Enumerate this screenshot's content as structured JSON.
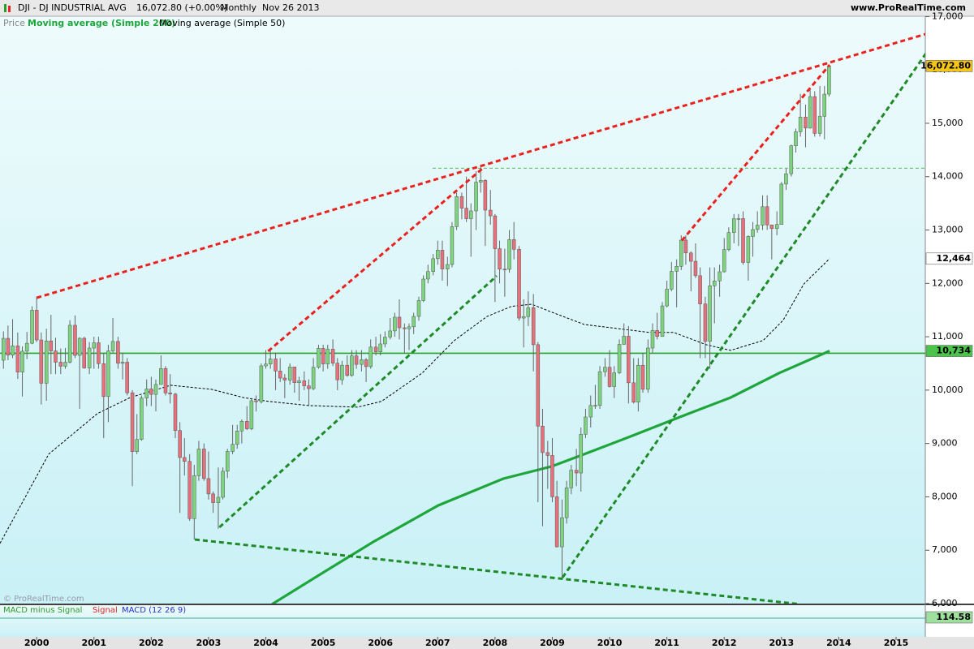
{
  "header": {
    "symbol": "DJI - DJ INDUSTRIAL AVG",
    "quote": "16,072.80 (+0.00%)",
    "period": "Monthly",
    "date": "Nov 26 2013",
    "site": "www.ProRealTime.com",
    "watermark": "© ProRealTime.com"
  },
  "chart_data": {
    "type": "candlestick",
    "legend": [
      "Price"
    ],
    "up_color": "#7ed47e",
    "down_color": "#e8707a",
    "xlim": [
      1999.36,
      2015.51
    ],
    "xticks": [
      2000,
      2001,
      2002,
      2003,
      2004,
      2005,
      2006,
      2007,
      2008,
      2009,
      2010,
      2011,
      2012,
      2013,
      2014,
      2015
    ],
    "ylim": [
      6000,
      17310
    ],
    "yticks": [
      {
        "value": 6000,
        "label": "6,000"
      },
      {
        "value": 7000,
        "label": "7,000"
      },
      {
        "value": 8000,
        "label": "8,000"
      },
      {
        "value": 9000,
        "label": "9,000"
      },
      {
        "value": 10000,
        "label": "10,000"
      },
      {
        "value": 11000,
        "label": "11,000"
      },
      {
        "value": 12000,
        "label": "12,000"
      },
      {
        "value": 13000,
        "label": "13,000"
      },
      {
        "value": 14000,
        "label": "14,000"
      },
      {
        "value": 15000,
        "label": "15,000"
      },
      {
        "value": 16000,
        "label": "16,000"
      },
      {
        "value": 17000,
        "label": "17,000"
      }
    ],
    "x": [
      1999.42,
      1999.5,
      1999.58,
      1999.67,
      1999.75,
      1999.83,
      1999.92,
      2000,
      2000.08,
      2000.17,
      2000.25,
      2000.33,
      2000.42,
      2000.5,
      2000.58,
      2000.67,
      2000.75,
      2000.83,
      2000.92,
      2001,
      2001.08,
      2001.17,
      2001.25,
      2001.33,
      2001.42,
      2001.5,
      2001.58,
      2001.67,
      2001.75,
      2001.83,
      2001.92,
      2002,
      2002.08,
      2002.17,
      2002.25,
      2002.33,
      2002.42,
      2002.5,
      2002.58,
      2002.67,
      2002.75,
      2002.83,
      2002.92,
      2003,
      2003.08,
      2003.17,
      2003.25,
      2003.33,
      2003.42,
      2003.5,
      2003.58,
      2003.67,
      2003.75,
      2003.83,
      2003.92,
      2004,
      2004.08,
      2004.17,
      2004.25,
      2004.33,
      2004.42,
      2004.5,
      2004.58,
      2004.67,
      2004.75,
      2004.83,
      2004.92,
      2005,
      2005.08,
      2005.17,
      2005.25,
      2005.33,
      2005.42,
      2005.5,
      2005.58,
      2005.67,
      2005.75,
      2005.83,
      2005.92,
      2006,
      2006.08,
      2006.17,
      2006.25,
      2006.33,
      2006.42,
      2006.5,
      2006.58,
      2006.67,
      2006.75,
      2006.83,
      2006.92,
      2007,
      2007.08,
      2007.17,
      2007.25,
      2007.33,
      2007.42,
      2007.5,
      2007.58,
      2007.67,
      2007.75,
      2007.83,
      2007.92,
      2008,
      2008.08,
      2008.17,
      2008.25,
      2008.33,
      2008.42,
      2008.5,
      2008.58,
      2008.67,
      2008.75,
      2008.83,
      2008.92,
      2009,
      2009.08,
      2009.17,
      2009.25,
      2009.33,
      2009.42,
      2009.5,
      2009.58,
      2009.67,
      2009.75,
      2009.83,
      2009.92,
      2010,
      2010.08,
      2010.17,
      2010.25,
      2010.33,
      2010.42,
      2010.5,
      2010.58,
      2010.67,
      2010.75,
      2010.83,
      2010.92,
      2011,
      2011.08,
      2011.17,
      2011.25,
      2011.33,
      2011.42,
      2011.5,
      2011.58,
      2011.67,
      2011.75,
      2011.83,
      2011.92,
      2012,
      2012.08,
      2012.17,
      2012.25,
      2012.33,
      2012.42,
      2012.5,
      2012.58,
      2012.67,
      2012.75,
      2012.83,
      2012.92,
      2013,
      2013.08,
      2013.17,
      2013.25,
      2013.33,
      2013.42,
      2013.5,
      2013.58,
      2013.67,
      2013.75,
      2013.83
    ],
    "open": [
      10560,
      10970,
      10655,
      10829,
      10337,
      10729,
      10878,
      11497,
      10940,
      10128,
      10922,
      10734,
      10522,
      10448,
      10522,
      11215,
      10651,
      10971,
      10415,
      10788,
      10887,
      10495,
      9879,
      10735,
      10912,
      10502,
      10523,
      9950,
      8848,
      9075,
      9852,
      10022,
      9920,
      10106,
      10404,
      9946,
      9925,
      9243,
      8737,
      8664,
      7592,
      8397,
      8896,
      8342,
      8054,
      7891,
      7992,
      8480,
      8850,
      8985,
      9234,
      9416,
      9275,
      9801,
      9782,
      10454,
      10488,
      10584,
      10358,
      10226,
      10188,
      10435,
      10140,
      10174,
      10080,
      10027,
      10428,
      10783,
      10490,
      10766,
      10504,
      10193,
      10467,
      10275,
      10641,
      10482,
      10569,
      10440,
      10806,
      10718,
      10865,
      10993,
      11109,
      11367,
      11168,
      11150,
      11186,
      11381,
      11679,
      12081,
      12221,
      12463,
      12622,
      12269,
      12354,
      13063,
      13628,
      13409,
      13212,
      13358,
      13896,
      13930,
      13372,
      13265,
      12650,
      12266,
      12263,
      12820,
      12638,
      11350,
      11378,
      11544,
      10851,
      9325,
      8829,
      8776,
      8001,
      7063,
      7609,
      8168,
      8500,
      8447,
      9172,
      9496,
      9712,
      9713,
      10345,
      10428,
      10067,
      10325,
      10857,
      11009,
      10137,
      9774,
      10466,
      10015,
      10788,
      11118,
      11006,
      11578,
      11892,
      12226,
      12320,
      12811,
      12570,
      12414,
      12143,
      11614,
      10913,
      11955,
      12046,
      12218,
      12633,
      12952,
      13212,
      13214,
      12393,
      12880,
      13009,
      13091,
      13437,
      13096,
      13026,
      13104,
      13861,
      14054,
      14579,
      14840,
      15116,
      14910,
      15500,
      14810,
      15130,
      15546
    ],
    "high": [
      11100,
      11210,
      11330,
      11080,
      10820,
      11090,
      11570,
      11750,
      11080,
      11150,
      11410,
      10980,
      10780,
      10790,
      11310,
      11400,
      10990,
      11000,
      10900,
      11000,
      11000,
      10700,
      10850,
      11350,
      11000,
      10700,
      10600,
      10000,
      9550,
      9900,
      10200,
      10250,
      10200,
      10650,
      10450,
      10300,
      9950,
      9400,
      9100,
      8800,
      8600,
      9050,
      9000,
      8850,
      8100,
      8550,
      8550,
      8900,
      9350,
      9350,
      9450,
      9700,
      9850,
      9900,
      10500,
      10750,
      10750,
      10700,
      10600,
      10300,
      10500,
      10400,
      10250,
      10350,
      10200,
      10600,
      10850,
      10850,
      10850,
      10950,
      10600,
      10550,
      10650,
      10750,
      10750,
      10750,
      10600,
      10950,
      11000,
      11050,
      11100,
      11350,
      11450,
      11700,
      11250,
      11250,
      11450,
      11750,
      12150,
      12350,
      12550,
      12800,
      12800,
      12500,
      13150,
      13700,
      13700,
      14000,
      13500,
      14100,
      14200,
      13950,
      13750,
      13300,
      12800,
      12650,
      13000,
      13150,
      12700,
      11700,
      11850,
      11800,
      10900,
      9650,
      9050,
      9100,
      8300,
      7950,
      8300,
      8600,
      8900,
      9300,
      9650,
      9900,
      10100,
      10450,
      10600,
      10750,
      10450,
      10950,
      11250,
      11200,
      10600,
      10600,
      10700,
      10950,
      11250,
      11450,
      11650,
      12050,
      12400,
      12450,
      12900,
      12900,
      12600,
      12750,
      12300,
      11750,
      12300,
      12300,
      12350,
      12850,
      13050,
      13300,
      13300,
      13350,
      12900,
      13150,
      13350,
      13650,
      13650,
      13100,
      13350,
      13900,
      14150,
      14600,
      14900,
      15550,
      15350,
      15650,
      15600,
      15700,
      15700,
      16100
    ],
    "low": [
      10400,
      10560,
      10600,
      10210,
      9880,
      10580,
      10860,
      10900,
      9730,
      9800,
      10300,
      10300,
      10300,
      10400,
      10500,
      10600,
      9650,
      10400,
      10300,
      10400,
      10400,
      9100,
      9400,
      10700,
      10400,
      10200,
      9900,
      8200,
      8800,
      9050,
      9700,
      9700,
      9600,
      10100,
      9900,
      9750,
      9100,
      7700,
      8400,
      7550,
      7200,
      8300,
      8300,
      7950,
      7700,
      7400,
      7950,
      8350,
      8800,
      8900,
      9000,
      9250,
      9250,
      9600,
      9750,
      10400,
      10400,
      10000,
      10150,
      9850,
      10100,
      9950,
      9800,
      10000,
      9700,
      10000,
      10400,
      10350,
      10400,
      10450,
      10000,
      10100,
      10250,
      10250,
      10400,
      10350,
      10150,
      10400,
      10650,
      10650,
      10800,
      10950,
      11000,
      10950,
      10700,
      10750,
      11050,
      11300,
      11650,
      12000,
      12150,
      12350,
      12050,
      11950,
      12300,
      13000,
      13200,
      13150,
      12500,
      13000,
      13700,
      12700,
      13100,
      11650,
      12000,
      11750,
      12200,
      12450,
      11300,
      10800,
      11200,
      10350,
      7900,
      7450,
      8150,
      7900,
      7050,
      6450,
      7500,
      8050,
      8200,
      8100,
      9100,
      9300,
      9650,
      9650,
      10250,
      10050,
      9850,
      10300,
      10850,
      9750,
      9750,
      9600,
      9950,
      9950,
      10700,
      10950,
      11000,
      11550,
      11850,
      11550,
      12250,
      12350,
      11850,
      12100,
      10600,
      10600,
      10400,
      11250,
      11750,
      12200,
      12600,
      12750,
      12700,
      12350,
      12050,
      12500,
      12950,
      13000,
      13000,
      12450,
      12900,
      13100,
      13750,
      14000,
      14450,
      14750,
      14550,
      14900,
      14750,
      14750,
      14700,
      15500
    ],
    "close": [
      10970,
      10655,
      10829,
      10337,
      10729,
      10878,
      11497,
      10940,
      10128,
      10922,
      10734,
      10522,
      10448,
      10522,
      11215,
      10651,
      10971,
      10415,
      10788,
      10887,
      10495,
      9879,
      10735,
      10912,
      10502,
      10523,
      9950,
      8848,
      9075,
      9852,
      10022,
      9920,
      10106,
      10404,
      9946,
      9925,
      9243,
      8737,
      8664,
      7592,
      8397,
      8896,
      8342,
      8054,
      7891,
      7992,
      8480,
      8850,
      8985,
      9234,
      9416,
      9275,
      9801,
      9782,
      10454,
      10488,
      10584,
      10358,
      10226,
      10188,
      10435,
      10140,
      10174,
      10080,
      10027,
      10428,
      10783,
      10490,
      10766,
      10504,
      10193,
      10467,
      10275,
      10641,
      10482,
      10569,
      10440,
      10806,
      10718,
      10865,
      10993,
      11109,
      11367,
      11168,
      11150,
      11186,
      11381,
      11679,
      12081,
      12221,
      12463,
      12622,
      12269,
      12354,
      13063,
      13628,
      13409,
      13212,
      13358,
      13896,
      13930,
      13372,
      13265,
      12650,
      12266,
      12263,
      12820,
      12638,
      11350,
      11378,
      11544,
      10851,
      9325,
      8829,
      8776,
      8001,
      7063,
      7609,
      8168,
      8500,
      8447,
      9172,
      9496,
      9712,
      9713,
      10345,
      10428,
      10067,
      10325,
      10857,
      11009,
      10137,
      9774,
      10466,
      10015,
      10788,
      11118,
      11006,
      11578,
      11892,
      12226,
      12320,
      12811,
      12570,
      12414,
      12143,
      11614,
      10913,
      11955,
      12046,
      12218,
      12633,
      12952,
      13212,
      13214,
      12393,
      12880,
      13009,
      13091,
      13437,
      13096,
      13026,
      13104,
      13861,
      14054,
      14579,
      14840,
      15116,
      14910,
      15500,
      14810,
      15130,
      15546,
      16072.8
    ],
    "series": [
      {
        "name": "Moving average (Simple 200)",
        "color": "#1ea63c",
        "dash": false,
        "x": [
          2004.11,
          2005.03,
          2005.88,
          2007.01,
          2008.14,
          2008.99,
          2009.56,
          2010.41,
          2011.26,
          2012.11,
          2012.96,
          2013.84
        ],
        "values": [
          5990,
          6600,
          7160,
          7840,
          8340,
          8570,
          8800,
          9150,
          9510,
          9860,
          10320,
          10734
        ]
      },
      {
        "name": "Moving average (Simple 50)",
        "color": "#000000",
        "dash": true,
        "x": [
          1999.36,
          2000.21,
          2001.06,
          2001.63,
          2002.34,
          2003.05,
          2003.61,
          2004.04,
          2004.75,
          2005.6,
          2006.02,
          2006.73,
          2007.29,
          2007.86,
          2008.29,
          2008.64,
          2008.99,
          2009.56,
          2010.13,
          2010.69,
          2011.12,
          2011.69,
          2012.11,
          2012.68,
          2013.03,
          2013.39,
          2013.84
        ],
        "values": [
          7128,
          8800,
          9560,
          9860,
          10090,
          10015,
          9860,
          9790,
          9710,
          9680,
          9790,
          10320,
          10930,
          11380,
          11570,
          11610,
          11460,
          11230,
          11155,
          11080,
          11080,
          10850,
          10745,
          10930,
          11310,
          11990,
          12464
        ]
      }
    ],
    "trendlines": [
      {
        "color": "#e8231f",
        "x": [
          2000,
          2015.51
        ],
        "values": [
          11730,
          16670
        ]
      },
      {
        "color": "#e8231f",
        "x": [
          2004.04,
          2007.79
        ],
        "values": [
          10730,
          14160
        ]
      },
      {
        "color": "#e8231f",
        "x": [
          2011.26,
          2013.84
        ],
        "values": [
          12800,
          16094
        ]
      },
      {
        "color": "#1e8a28",
        "x": [
          2003.19,
          2008.03
        ],
        "values": [
          7430,
          12140
        ]
      },
      {
        "color": "#1e8a28",
        "x": [
          2009.18,
          2015.58
        ],
        "values": [
          6490,
          16400
        ]
      },
      {
        "color": "#1e8a28",
        "x": [
          2002.76,
          2013.31
        ],
        "values": [
          7200,
          5990
        ]
      }
    ],
    "hlines": [
      {
        "color": "#2aa02a",
        "value": 10690,
        "dash": false,
        "from": 1999.36
      },
      {
        "color": "#2aa02a",
        "value": 14160,
        "dash": true,
        "from": 2006.91
      }
    ],
    "price_labels": [
      {
        "value": 16072.8,
        "label": "16,072.80",
        "color": "#f5c518"
      },
      {
        "value": 12464,
        "label": "12,464",
        "color": "#ffffff"
      },
      {
        "value": 10734,
        "label": "10,734",
        "color": "#4cc44c"
      }
    ],
    "macd": {
      "legend": [
        "MACD minus Signal",
        "Signal",
        "MACD (12 26 9)"
      ],
      "colors": [
        "#2aa02a",
        "#e8231f",
        "#2233cc"
      ],
      "last": 114.58
    }
  }
}
